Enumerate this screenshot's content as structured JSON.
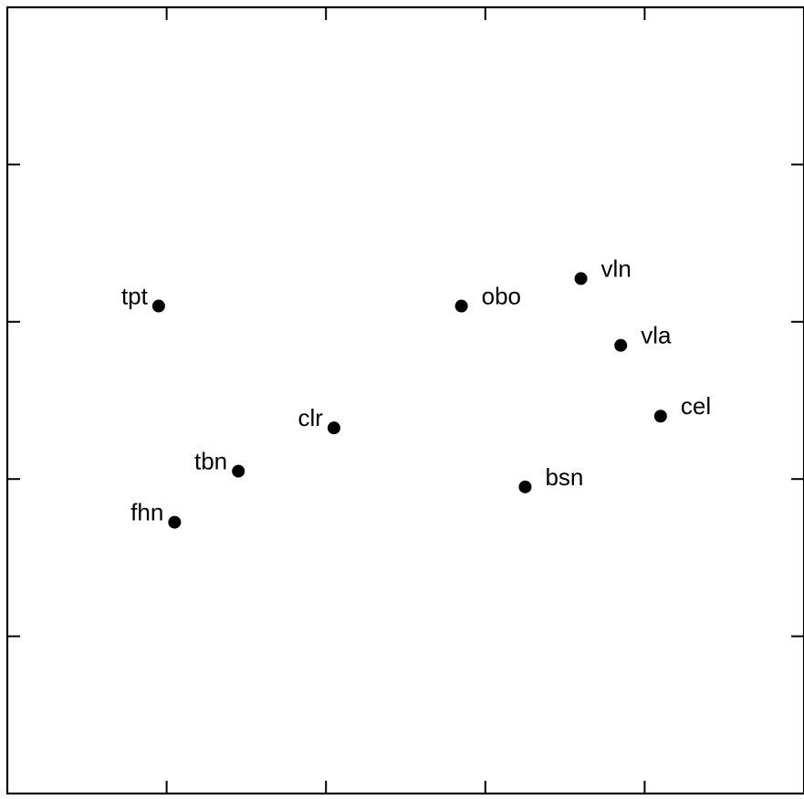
{
  "chart_data": {
    "type": "scatter",
    "title": "",
    "xlabel": "",
    "ylabel": "",
    "grid": false,
    "legend": "none",
    "xlim": [
      0,
      1
    ],
    "ylim": [
      0,
      1
    ],
    "points": [
      {
        "label": "tpt",
        "x": 0.19,
        "y": 0.62,
        "label_side": "left"
      },
      {
        "label": "obo",
        "x": 0.57,
        "y": 0.62,
        "label_side": "right"
      },
      {
        "label": "vln",
        "x": 0.72,
        "y": 0.655,
        "label_side": "right"
      },
      {
        "label": "vla",
        "x": 0.77,
        "y": 0.57,
        "label_side": "right"
      },
      {
        "label": "cel",
        "x": 0.82,
        "y": 0.48,
        "label_side": "right"
      },
      {
        "label": "clr",
        "x": 0.41,
        "y": 0.465,
        "label_side": "left"
      },
      {
        "label": "tbn",
        "x": 0.29,
        "y": 0.41,
        "label_side": "left"
      },
      {
        "label": "bsn",
        "x": 0.65,
        "y": 0.39,
        "label_side": "right"
      },
      {
        "label": "fhn",
        "x": 0.21,
        "y": 0.345,
        "label_side": "left"
      }
    ]
  }
}
